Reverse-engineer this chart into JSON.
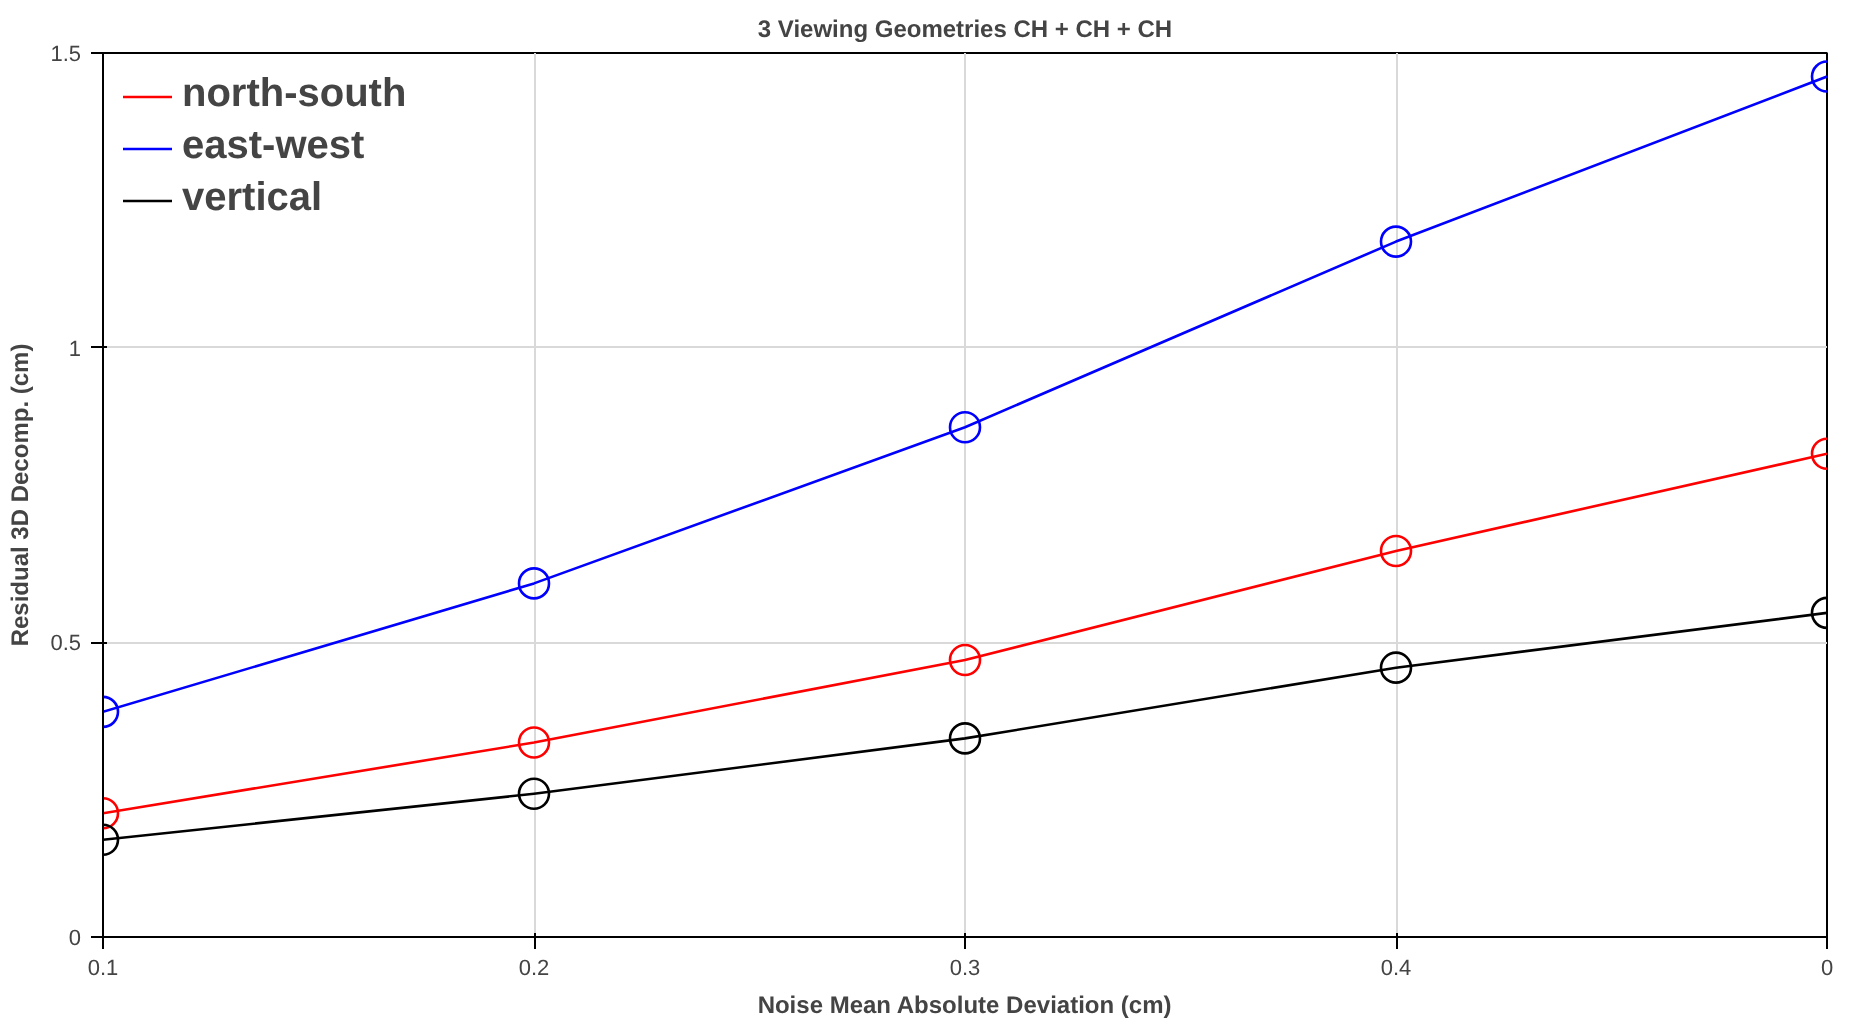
{
  "chart_data": {
    "type": "line",
    "title": "3 Viewing Geometries CH + CH + CH",
    "xlabel": "Noise Mean Absolute Deviation (cm)",
    "ylabel": "Residual 3D Decomp. (cm)",
    "x": [
      0.1,
      0.2,
      0.3,
      0.4,
      0.5
    ],
    "series": [
      {
        "name": "north-south",
        "color": "#ff0000",
        "values": [
          0.21,
          0.33,
          0.47,
          0.655,
          0.82
        ]
      },
      {
        "name": "east-west",
        "color": "#0000ff",
        "values": [
          0.382,
          0.6,
          0.865,
          1.18,
          1.46
        ]
      },
      {
        "name": "vertical",
        "color": "#000000",
        "values": [
          0.165,
          0.243,
          0.337,
          0.457,
          0.55
        ]
      }
    ],
    "xlim": [
      0.1,
      0.5
    ],
    "ylim": [
      0,
      1.5
    ],
    "xticks": [
      0.1,
      0.2,
      0.3,
      0.4,
      {
        "value": 0.5,
        "label": "0"
      }
    ],
    "yticks": [
      0,
      0.5,
      1,
      1.5
    ],
    "grid": true,
    "legend": "top left",
    "marker": "circle",
    "line_style": "solid"
  }
}
